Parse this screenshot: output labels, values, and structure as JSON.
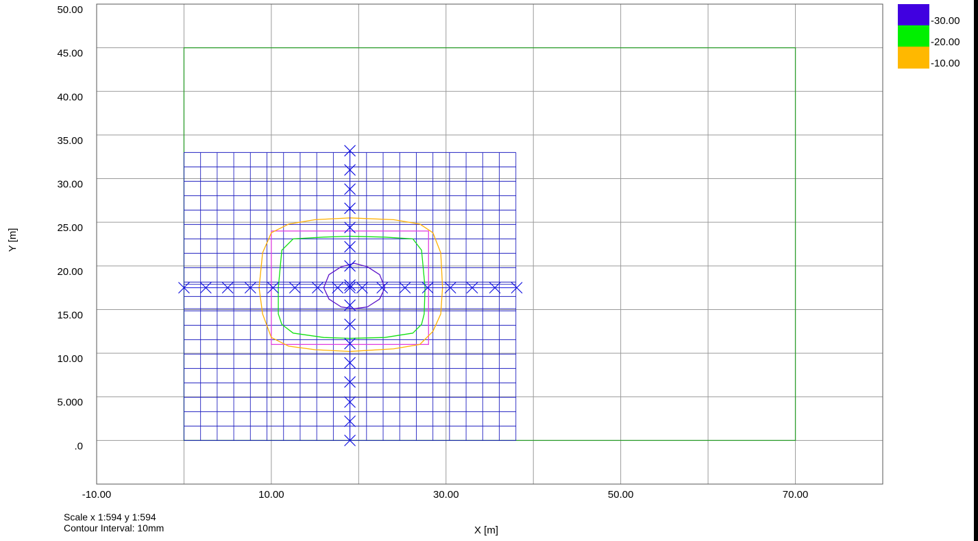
{
  "chart_data": {
    "type": "contour",
    "xlabel": "X [m]",
    "ylabel": "Y [m]",
    "xlim": [
      -10,
      80
    ],
    "ylim": [
      -5,
      50
    ],
    "x_ticks": [
      -10,
      0,
      10,
      20,
      30,
      40,
      50,
      60,
      70,
      80
    ],
    "y_ticks": [
      0,
      5,
      10,
      15,
      20,
      25,
      30,
      35,
      40,
      45,
      50
    ],
    "x_tick_labels": [
      "-10.00",
      "",
      "10.00",
      "",
      "30.00",
      "",
      "50.00",
      "",
      "70.00",
      ""
    ],
    "y_tick_labels": [
      ".0",
      "5.000",
      "10.00",
      "15.00",
      "20.00",
      "25.00",
      "30.00",
      "35.00",
      "40.00",
      "45.00",
      "50.00"
    ],
    "grid": true,
    "boundary": {
      "x": [
        0,
        70
      ],
      "y": [
        0,
        45
      ],
      "color": "#2e9e2e"
    },
    "mesh": {
      "x": [
        0,
        38
      ],
      "y": [
        0,
        33
      ],
      "nx": 20,
      "ny": 20,
      "color": "#2020c0"
    },
    "footing": {
      "x": [
        10,
        28
      ],
      "y": [
        11,
        24
      ],
      "color": "#e040e0"
    },
    "points_x_axis": {
      "y": 17.5,
      "x": [
        0,
        2.5,
        5,
        7.6,
        10.2,
        12.7,
        15.3,
        17.6,
        19,
        20.4,
        22.7,
        25.3,
        27.9,
        30.5,
        33,
        35.6,
        38.1
      ]
    },
    "points_y_axis": {
      "x": 19,
      "y": [
        0,
        2.2,
        4.4,
        6.7,
        8.9,
        11.1,
        13.3,
        15.5,
        17.8,
        20,
        22.2,
        24.4,
        26.6,
        28.8,
        31,
        33.2
      ]
    },
    "contours": [
      {
        "level": -30,
        "color": "#5a10c8",
        "x": [
          16,
          16.6,
          18,
          19.5,
          21,
          22.4,
          23,
          22.4,
          21,
          19.5,
          18,
          16.6,
          16
        ],
        "y": [
          17.5,
          19,
          19.9,
          20.3,
          19.9,
          19,
          17.5,
          16.2,
          15.3,
          15.1,
          15.3,
          16.2,
          17.5
        ]
      },
      {
        "level": -20,
        "color": "#10e010",
        "x": [
          10.8,
          11.2,
          12.5,
          16,
          19,
          23,
          26.2,
          27.2,
          27.6,
          27.5,
          27.2,
          26.2,
          23,
          19,
          16,
          12.5,
          11.2,
          10.8,
          10.8
        ],
        "y": [
          17.5,
          21.8,
          23.1,
          23.3,
          23.4,
          23.3,
          23.1,
          21.8,
          17.5,
          14.5,
          13.3,
          12.3,
          11.8,
          11.7,
          11.8,
          12.3,
          13.3,
          14.5,
          17.5
        ]
      },
      {
        "level": -10,
        "color": "#ffb000",
        "x": [
          8.6,
          9,
          10,
          12,
          15,
          19,
          24,
          27,
          28.5,
          29.4,
          29.6,
          29.4,
          28.5,
          27,
          24,
          19,
          15,
          12,
          10,
          9,
          8.6,
          8.6
        ],
        "y": [
          17.5,
          21.5,
          23.8,
          24.8,
          25.3,
          25.5,
          25.3,
          24.8,
          23.8,
          21.5,
          17.5,
          14.5,
          12.5,
          11,
          10.5,
          10.2,
          10.4,
          10.8,
          11.8,
          14.5,
          17.5,
          17.5
        ]
      }
    ],
    "legend": [
      {
        "label": "-30.00",
        "color": "#4000e0"
      },
      {
        "label": "-20.00",
        "color": "#00f000"
      },
      {
        "label": "-10.00",
        "color": "#ffb800"
      }
    ],
    "legend_placement": "top-right"
  },
  "info": {
    "scale": "Scale x 1:594  y 1:594",
    "contour_interval": "Contour Interval: 10mm"
  }
}
